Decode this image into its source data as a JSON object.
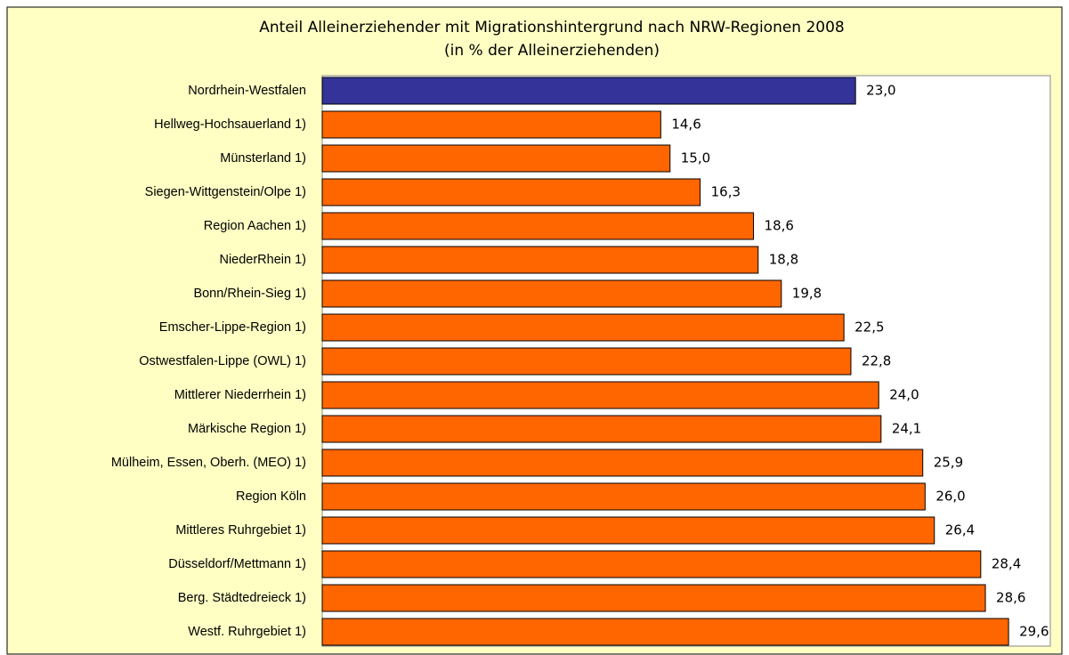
{
  "chart_data": {
    "type": "barh",
    "title": "Anteil Alleinerziehender mit Migrationshintergrund nach NRW-Regionen 2008",
    "subtitle": "(in % der Alleinerziehenden)",
    "categories": [
      "Nordrhein-Westfalen",
      "Hellweg-Hochsauerland 1)",
      "Münsterland 1)",
      "Siegen-Wittgenstein/Olpe 1)",
      "Region Aachen 1)",
      "NiederRhein 1)",
      "Bonn/Rhein-Sieg 1)",
      "Emscher-Lippe-Region 1)",
      "Ostwestfalen-Lippe (OWL) 1)",
      "Mittlerer Niederrhein 1)",
      "Märkische Region 1)",
      "Mülheim, Essen, Oberh. (MEO) 1)",
      "Region Köln",
      "Mittleres Ruhrgebiet 1)",
      "Düsseldorf/Mettmann 1)",
      "Berg. Städtedreieck 1)",
      "Westf. Ruhrgebiet 1)"
    ],
    "values": [
      23.0,
      14.6,
      15.0,
      16.3,
      18.6,
      18.8,
      19.8,
      22.5,
      22.8,
      24.0,
      24.1,
      25.9,
      26.0,
      26.4,
      28.4,
      28.6,
      29.6
    ],
    "value_labels": [
      "23,0",
      "14,6",
      "15,0",
      "16,3",
      "18,6",
      "18,8",
      "19,8",
      "22,5",
      "22,8",
      "24,0",
      "24,1",
      "25,9",
      "26,0",
      "26,4",
      "28,4",
      "28,6",
      "29,6"
    ],
    "colors": [
      "#333399",
      "#ff6600",
      "#ff6600",
      "#ff6600",
      "#ff6600",
      "#ff6600",
      "#ff6600",
      "#ff6600",
      "#ff6600",
      "#ff6600",
      "#ff6600",
      "#ff6600",
      "#ff6600",
      "#ff6600",
      "#ff6600",
      "#ff6600",
      "#ff6600"
    ],
    "xlim": [
      0,
      31.4
    ]
  }
}
